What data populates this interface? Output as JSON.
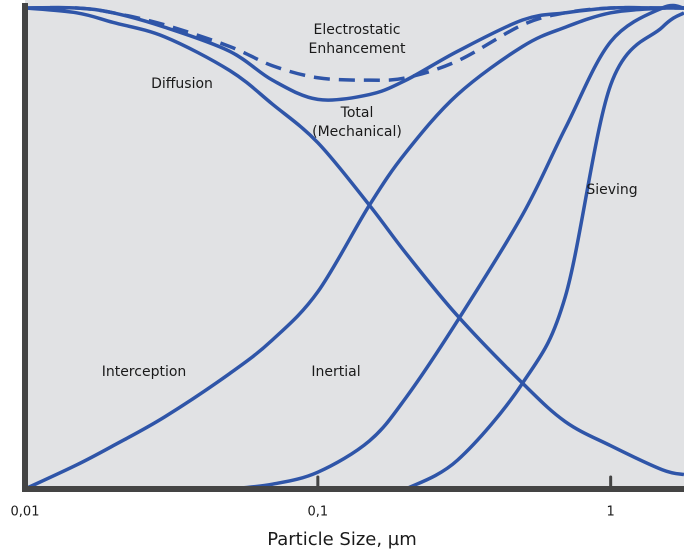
{
  "chart_data": {
    "type": "line",
    "xlabel": "Particle Size, µm",
    "xscale": "log",
    "xlim": [
      0.01,
      1.78
    ],
    "xticks": [
      {
        "value": 0.01,
        "label": "0,01"
      },
      {
        "value": 0.1,
        "label": "0,1"
      },
      1
    ],
    "ylim": [
      0,
      1
    ],
    "x": [
      0.01,
      0.015,
      0.02,
      0.03,
      0.05,
      0.07,
      0.1,
      0.15,
      0.2,
      0.3,
      0.5,
      0.7,
      1,
      1.5,
      1.78
    ],
    "series": [
      {
        "name": "Diffusion",
        "color": "#2f55a8",
        "dashed": false,
        "values": [
          1.0,
          0.99,
          0.97,
          0.94,
          0.87,
          0.8,
          0.72,
          0.59,
          0.49,
          0.36,
          0.22,
          0.14,
          0.09,
          0.04,
          0.03
        ]
      },
      {
        "name": "Interception",
        "color": "#2f55a8",
        "dashed": false,
        "values": [
          0,
          0.05,
          0.09,
          0.15,
          0.24,
          0.31,
          0.41,
          0.59,
          0.7,
          0.82,
          0.92,
          0.96,
          0.99,
          1.0,
          1.0
        ]
      },
      {
        "name": "Inertial",
        "color": "#2f55a8",
        "dashed": false,
        "values": [
          null,
          null,
          null,
          null,
          0,
          0.01,
          0.035,
          0.1,
          0.19,
          0.35,
          0.57,
          0.75,
          0.93,
          1.0,
          1.0
        ]
      },
      {
        "name": "Sieving",
        "color": "#2f55a8",
        "dashed": false,
        "values": [
          null,
          null,
          null,
          null,
          null,
          null,
          null,
          null,
          0,
          0.06,
          0.22,
          0.4,
          0.84,
          0.96,
          0.99
        ]
      },
      {
        "name": "Total (Mechanical)",
        "color": "#2f55a8",
        "dashed": false,
        "values": [
          1.0,
          1.0,
          0.99,
          0.96,
          0.91,
          0.85,
          0.81,
          0.82,
          0.85,
          0.91,
          0.975,
          0.99,
          1.0,
          1.0,
          1.0
        ]
      },
      {
        "name": "Electrostatic Enhancement",
        "color": "#2f55a8",
        "dashed": true,
        "values": [
          1.0,
          1.0,
          0.99,
          0.965,
          0.92,
          0.88,
          0.855,
          0.85,
          0.855,
          0.89,
          0.965,
          0.99,
          1.0,
          1.0,
          1.0
        ]
      }
    ],
    "annotations": [
      [
        "Electrostatic",
        "Enhancement"
      ],
      [
        "Diffusion"
      ],
      [
        "Total",
        "(Mechanical)"
      ],
      [
        "Sieving"
      ],
      [
        "Interception"
      ],
      [
        "Inertial"
      ]
    ]
  }
}
